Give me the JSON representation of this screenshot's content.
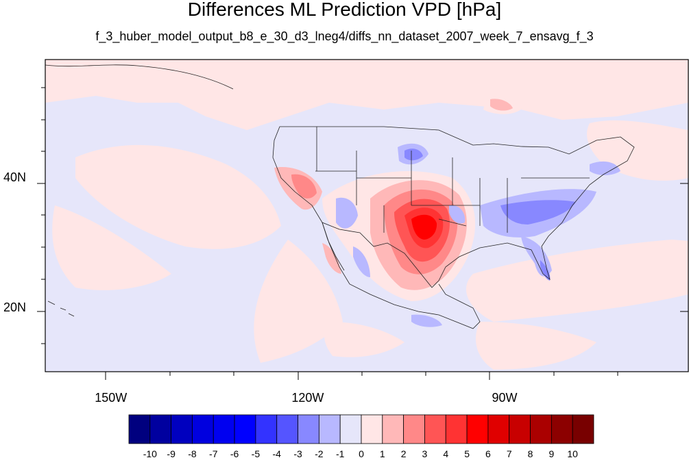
{
  "title": "Differences ML Prediction VPD [hPa]",
  "subtitle": "f_3_huber_model_output_b8_e_30_d3_lneg4/diffs_nn_dataset_2007_week_7_ensavg_f_3",
  "map": {
    "lon_range": [
      -160,
      -62
    ],
    "lat_range": [
      10,
      58
    ],
    "lon_ticks": [
      {
        "value": -150,
        "label": "150W"
      },
      {
        "value": -120,
        "label": "120W"
      },
      {
        "value": -90,
        "label": "90W"
      }
    ],
    "lat_ticks": [
      {
        "value": 40,
        "label": "40N"
      },
      {
        "value": 20,
        "label": "20N"
      }
    ],
    "background_anomaly_color": "#e6e6fa"
  },
  "colorbar": {
    "labels": [
      "-10",
      "-9",
      "-8",
      "-7",
      "-6",
      "-5",
      "-4",
      "-3",
      "-2",
      "-1",
      "0",
      "1",
      "2",
      "3",
      "4",
      "5",
      "6",
      "7",
      "8",
      "9",
      "10"
    ],
    "colors": [
      "#00007f",
      "#00009f",
      "#0000bf",
      "#0000df",
      "#0000f0",
      "#0000ff",
      "#3333ff",
      "#5555ff",
      "#8888ff",
      "#b8b8ff",
      "#e6e6fa",
      "#ffe6e6",
      "#ffb8b8",
      "#ff8888",
      "#ff5555",
      "#ff3333",
      "#ff0000",
      "#e00000",
      "#c80000",
      "#aa0000",
      "#8c0000",
      "#780000"
    ]
  }
}
